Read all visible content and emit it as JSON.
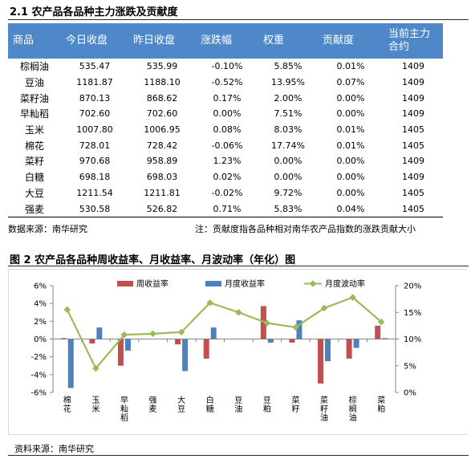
{
  "section1": {
    "title": "2.1 农产品各品种主力涨跌及贡献度",
    "headers": [
      "商品",
      "今日收盘",
      "昨日收盘",
      "涨跌幅",
      "权重",
      "贡献度",
      "当前主力合约"
    ],
    "rows": [
      [
        "棕榈油",
        "535.47",
        "535.99",
        "-0.10%",
        "5.85%",
        "0.01%",
        "1409"
      ],
      [
        "豆油",
        "1181.87",
        "1188.10",
        "-0.52%",
        "13.95%",
        "0.07%",
        "1409"
      ],
      [
        "菜籽油",
        "870.13",
        "868.62",
        "0.17%",
        "2.00%",
        "0.00%",
        "1409"
      ],
      [
        "早籼稻",
        "702.60",
        "702.60",
        "0.00%",
        "7.51%",
        "0.00%",
        "1409"
      ],
      [
        "玉米",
        "1007.80",
        "1006.95",
        "0.08%",
        "8.03%",
        "0.01%",
        "1405"
      ],
      [
        "棉花",
        "728.01",
        "728.42",
        "-0.06%",
        "17.74%",
        "0.01%",
        "1405"
      ],
      [
        "菜籽",
        "970.68",
        "958.89",
        "1.23%",
        "0.00%",
        "0.00%",
        "1409"
      ],
      [
        "白糖",
        "698.18",
        "698.03",
        "0.02%",
        "0.00%",
        "0.00%",
        "1409"
      ],
      [
        "大豆",
        "1211.54",
        "1211.81",
        "-0.02%",
        "9.72%",
        "0.00%",
        "1405"
      ],
      [
        "强麦",
        "530.58",
        "526.82",
        "0.71%",
        "5.83%",
        "0.04%",
        "1405"
      ]
    ],
    "source": "数据来源：南华研究",
    "note": "注：贡献度指各品种相对南华农产品指数的涨跌贡献大小"
  },
  "section2": {
    "title": "图 2 农产品各品种周收益率、月收益率、月波动率（年化）图",
    "source": "资料来源：南华研究"
  },
  "chart_data": {
    "type": "bar",
    "categories": [
      "棉花",
      "玉米",
      "早籼稻",
      "强麦",
      "大豆",
      "白糖",
      "豆油",
      "豆粕",
      "菜籽",
      "菜籽油",
      "棕榈油",
      "菜粕"
    ],
    "category_labels": [
      [
        "棉",
        "花"
      ],
      [
        "玉",
        "米"
      ],
      [
        "早",
        "籼",
        "稻"
      ],
      [
        "强",
        "麦"
      ],
      [
        "大",
        "豆"
      ],
      [
        "白",
        "糖"
      ],
      [
        "豆",
        "油"
      ],
      [
        "豆",
        "粕"
      ],
      [
        "菜",
        "籽"
      ],
      [
        "菜",
        "籽",
        "油"
      ],
      [
        "棕",
        "榈",
        "油"
      ],
      [
        "菜",
        "粕"
      ]
    ],
    "series": [
      {
        "name": "周收益率",
        "kind": "bar",
        "axis": "left",
        "color": "#c0504d",
        "values": [
          0.1,
          -0.5,
          -3.0,
          0.0,
          -0.6,
          -2.2,
          0.0,
          3.7,
          -0.4,
          -5.0,
          -2.2,
          1.5
        ]
      },
      {
        "name": "月度收益率",
        "kind": "bar",
        "axis": "left",
        "color": "#4f81bd",
        "values": [
          -5.5,
          1.3,
          -1.3,
          0.0,
          -3.6,
          1.3,
          0.0,
          -0.4,
          2.1,
          -2.5,
          -1.0,
          0.1
        ]
      },
      {
        "name": "月度波动率",
        "kind": "line",
        "axis": "right",
        "color": "#9bbb59",
        "values": [
          15.5,
          4.5,
          10.8,
          11.0,
          11.3,
          16.8,
          15.0,
          13.0,
          12.2,
          15.8,
          17.8,
          13.2
        ]
      }
    ],
    "left_axis": {
      "min": -6,
      "max": 6,
      "step": 2,
      "ticks": [
        "6%",
        "4%",
        "2%",
        "0%",
        "-2%",
        "-4%",
        "-6%"
      ]
    },
    "right_axis": {
      "min": 0,
      "max": 20,
      "step": 5,
      "ticks": [
        "20%",
        "15%",
        "10%",
        "5%",
        "0%"
      ]
    },
    "legend_position": "top",
    "grid": false
  }
}
